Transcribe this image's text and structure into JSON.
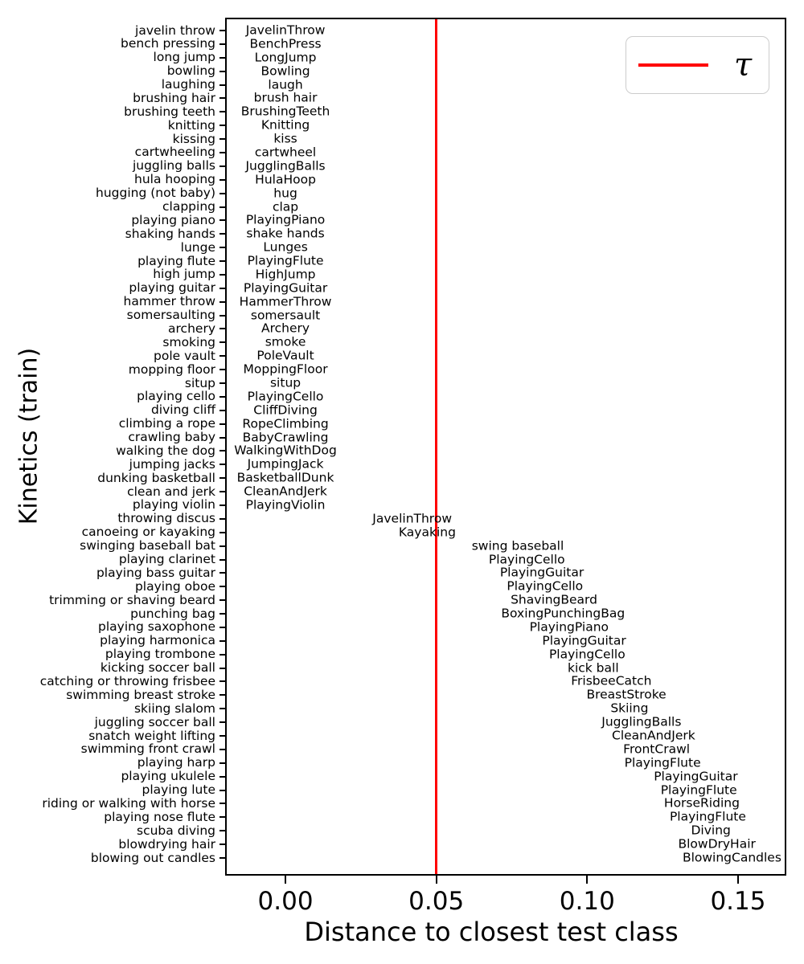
{
  "figure": {
    "background": "#ffffff",
    "axes_color": "#000000"
  },
  "chart_data": {
    "type": "scatter",
    "title": "",
    "xlabel": "Distance to closest test class",
    "ylabel": "Kinetics (train)",
    "xlim": [
      -0.02,
      0.166
    ],
    "grid": false,
    "legend_position": "upper right",
    "threshold": {
      "value": 0.05,
      "label": "τ",
      "color": "#ff0000"
    },
    "xticks": [
      {
        "value": 0.0,
        "label": "0.00"
      },
      {
        "value": 0.05,
        "label": "0.05"
      },
      {
        "value": 0.1,
        "label": "0.10"
      },
      {
        "value": 0.15,
        "label": "0.15"
      }
    ],
    "rows": [
      {
        "train": "javelin throw",
        "closest": "JavelinThrow",
        "distance": 0.0
      },
      {
        "train": "bench pressing",
        "closest": "BenchPress",
        "distance": 0.0
      },
      {
        "train": "long jump",
        "closest": "LongJump",
        "distance": 0.0
      },
      {
        "train": "bowling",
        "closest": "Bowling",
        "distance": 0.0
      },
      {
        "train": "laughing",
        "closest": "laugh",
        "distance": 0.0
      },
      {
        "train": "brushing hair",
        "closest": "brush hair",
        "distance": 0.0
      },
      {
        "train": "brushing teeth",
        "closest": "BrushingTeeth",
        "distance": 0.0
      },
      {
        "train": "knitting",
        "closest": "Knitting",
        "distance": 0.0
      },
      {
        "train": "kissing",
        "closest": "kiss",
        "distance": 0.0
      },
      {
        "train": "cartwheeling",
        "closest": "cartwheel",
        "distance": 0.0
      },
      {
        "train": "juggling balls",
        "closest": "JugglingBalls",
        "distance": 0.0
      },
      {
        "train": "hula hooping",
        "closest": "HulaHoop",
        "distance": 0.0
      },
      {
        "train": "hugging (not baby)",
        "closest": "hug",
        "distance": 0.0
      },
      {
        "train": "clapping",
        "closest": "clap",
        "distance": 0.0
      },
      {
        "train": "playing piano",
        "closest": "PlayingPiano",
        "distance": 0.0
      },
      {
        "train": "shaking hands",
        "closest": "shake hands",
        "distance": 0.0
      },
      {
        "train": "lunge",
        "closest": "Lunges",
        "distance": 0.0
      },
      {
        "train": "playing flute",
        "closest": "PlayingFlute",
        "distance": 0.0
      },
      {
        "train": "high jump",
        "closest": "HighJump",
        "distance": 0.0
      },
      {
        "train": "playing guitar",
        "closest": "PlayingGuitar",
        "distance": 0.0
      },
      {
        "train": "hammer throw",
        "closest": "HammerThrow",
        "distance": 0.0
      },
      {
        "train": "somersaulting",
        "closest": "somersault",
        "distance": 0.0
      },
      {
        "train": "archery",
        "closest": "Archery",
        "distance": 0.0
      },
      {
        "train": "smoking",
        "closest": "smoke",
        "distance": 0.0
      },
      {
        "train": "pole vault",
        "closest": "PoleVault",
        "distance": 0.0
      },
      {
        "train": "mopping floor",
        "closest": "MoppingFloor",
        "distance": 0.0
      },
      {
        "train": "situp",
        "closest": "situp",
        "distance": 0.0
      },
      {
        "train": "playing cello",
        "closest": "PlayingCello",
        "distance": 0.0
      },
      {
        "train": "diving cliff",
        "closest": "CliffDiving",
        "distance": 0.0
      },
      {
        "train": "climbing a rope",
        "closest": "RopeClimbing",
        "distance": 0.0
      },
      {
        "train": "crawling baby",
        "closest": "BabyCrawling",
        "distance": 0.0
      },
      {
        "train": "walking the dog",
        "closest": "WalkingWithDog",
        "distance": 0.0
      },
      {
        "train": "jumping jacks",
        "closest": "JumpingJack",
        "distance": 0.0
      },
      {
        "train": "dunking basketball",
        "closest": "BasketballDunk",
        "distance": 0.0
      },
      {
        "train": "clean and jerk",
        "closest": "CleanAndJerk",
        "distance": 0.0
      },
      {
        "train": "playing violin",
        "closest": "PlayingViolin",
        "distance": 0.0
      },
      {
        "train": "throwing discus",
        "closest": "JavelinThrow",
        "distance": 0.042
      },
      {
        "train": "canoeing or kayaking",
        "closest": "Kayaking",
        "distance": 0.047
      },
      {
        "train": "swinging baseball bat",
        "closest": "swing baseball",
        "distance": 0.077
      },
      {
        "train": "playing clarinet",
        "closest": "PlayingCello",
        "distance": 0.08
      },
      {
        "train": "playing bass guitar",
        "closest": "PlayingGuitar",
        "distance": 0.085
      },
      {
        "train": "playing oboe",
        "closest": "PlayingCello",
        "distance": 0.086
      },
      {
        "train": "trimming or shaving beard",
        "closest": "ShavingBeard",
        "distance": 0.089
      },
      {
        "train": "punching bag",
        "closest": "BoxingPunchingBag",
        "distance": 0.092
      },
      {
        "train": "playing saxophone",
        "closest": "PlayingPiano",
        "distance": 0.094
      },
      {
        "train": "playing harmonica",
        "closest": "PlayingGuitar",
        "distance": 0.099
      },
      {
        "train": "playing trombone",
        "closest": "PlayingCello",
        "distance": 0.1
      },
      {
        "train": "kicking soccer ball",
        "closest": "kick ball",
        "distance": 0.102
      },
      {
        "train": "catching or throwing frisbee",
        "closest": "FrisbeeCatch",
        "distance": 0.108
      },
      {
        "train": "swimming breast stroke",
        "closest": "BreastStroke",
        "distance": 0.113
      },
      {
        "train": "skiing slalom",
        "closest": "Skiing",
        "distance": 0.114
      },
      {
        "train": "juggling soccer ball",
        "closest": "JugglingBalls",
        "distance": 0.118
      },
      {
        "train": "snatch weight lifting",
        "closest": "CleanAndJerk",
        "distance": 0.122
      },
      {
        "train": "swimming front crawl",
        "closest": "FrontCrawl",
        "distance": 0.123
      },
      {
        "train": "playing harp",
        "closest": "PlayingFlute",
        "distance": 0.125
      },
      {
        "train": "playing ukulele",
        "closest": "PlayingGuitar",
        "distance": 0.136
      },
      {
        "train": "playing lute",
        "closest": "PlayingFlute",
        "distance": 0.137
      },
      {
        "train": "riding or walking with horse",
        "closest": "HorseRiding",
        "distance": 0.138
      },
      {
        "train": "playing nose flute",
        "closest": "PlayingFlute",
        "distance": 0.14
      },
      {
        "train": "scuba diving",
        "closest": "Diving",
        "distance": 0.141
      },
      {
        "train": "blowdrying hair",
        "closest": "BlowDryHair",
        "distance": 0.143
      },
      {
        "train": "blowing out candles",
        "closest": "BlowingCandles",
        "distance": 0.148
      }
    ]
  }
}
